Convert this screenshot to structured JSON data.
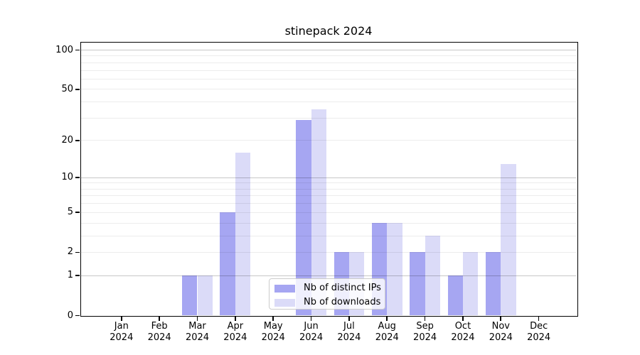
{
  "title": "stinepack 2024",
  "legend": {
    "entries": [
      {
        "label": "Nb of distinct IPs"
      },
      {
        "label": "Nb of downloads"
      }
    ]
  },
  "chart_data": {
    "type": "bar",
    "title": "stinepack 2024",
    "categories": [
      "Jan 2024",
      "Feb 2024",
      "Mar 2024",
      "Apr 2024",
      "May 2024",
      "Jun 2024",
      "Jul 2024",
      "Aug 2024",
      "Sep 2024",
      "Oct 2024",
      "Nov 2024",
      "Dec 2024"
    ],
    "x_tick_month_labels": [
      "Jan",
      "Feb",
      "Mar",
      "Apr",
      "May",
      "Jun",
      "Jul",
      "Aug",
      "Sep",
      "Oct",
      "Nov",
      "Dec"
    ],
    "x_tick_year_label": "2024",
    "series": [
      {
        "name": "Nb of distinct IPs",
        "color": "#a6a6f2",
        "values": [
          0,
          0,
          1,
          5,
          0,
          29,
          2,
          4,
          2,
          1,
          2,
          0
        ]
      },
      {
        "name": "Nb of downloads",
        "color": "#dbdbf8",
        "values": [
          0,
          0,
          1,
          16,
          0,
          35,
          2,
          4,
          3,
          2,
          13,
          0
        ]
      }
    ],
    "xlabel": "",
    "ylabel": "",
    "yscale": "log1p",
    "ylim": [
      0,
      114
    ],
    "y_tick_values": [
      0,
      1,
      2,
      5,
      10,
      20,
      50,
      100
    ],
    "y_tick_labels": [
      "0",
      "1",
      "2",
      "5",
      "10",
      "20",
      "50",
      "100"
    ],
    "y_minor_gridlines": [
      2,
      3,
      4,
      5,
      6,
      7,
      8,
      9,
      20,
      30,
      40,
      50,
      60,
      70,
      80,
      90
    ],
    "y_major_gridlines": [
      1,
      10,
      100
    ],
    "grid": true,
    "legend_position": "lower center"
  }
}
